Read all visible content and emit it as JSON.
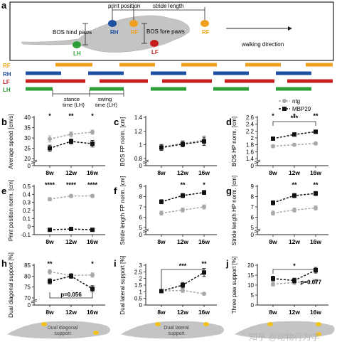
{
  "colors": {
    "ntg": "#a8a8a8",
    "mbp29": "#111111",
    "rf": "#f0a01e",
    "rh": "#1f4fa0",
    "lf": "#c81e1e",
    "lh": "#2e9e3a",
    "mouse": "#c4c4c4",
    "zh": "#b0b0b0",
    "footpad": "#f2c21a"
  },
  "panel_a": {
    "letter": "a",
    "labels": {
      "print_position": "print position",
      "stride_length": "stride length",
      "bos_hind": "BOS hind paws",
      "bos_fore": "BOS fore paws",
      "walking_direction": "walking direction",
      "stance": "stance\ntime (LH)",
      "swing": "swing\ntime (LH)"
    },
    "paws": [
      {
        "key": "rf",
        "label": "RF"
      },
      {
        "key": "rh",
        "label": "RH"
      },
      {
        "key": "lf",
        "label": "LF"
      },
      {
        "key": "lh",
        "label": "LH"
      }
    ]
  },
  "legend": {
    "ntg": "ntg",
    "mbp29": "MBP29"
  },
  "watermark": "知乎 @动物行为学",
  "support_labels": {
    "h": "Dual diagonal support",
    "i": "Dual lateral support"
  },
  "chart_data": [
    {
      "panel": "b",
      "type": "line",
      "ylabel": "Average speed [cm/s]",
      "categories": [
        "8w",
        "12w",
        "16w"
      ],
      "ylim": [
        0,
        40
      ],
      "yticks": [
        0,
        20,
        25,
        30,
        35,
        40
      ],
      "axis_break": true,
      "series": [
        {
          "name": "ntg",
          "values": [
            29.5,
            31.8,
            32.8
          ],
          "err": [
            1.5,
            1.2,
            1.0
          ]
        },
        {
          "name": "MBP29",
          "values": [
            25.0,
            28.3,
            27.2
          ],
          "err": [
            1.5,
            1.2,
            1.6
          ]
        }
      ],
      "sig": [
        "*",
        "**",
        "*"
      ]
    },
    {
      "panel": "c",
      "type": "line",
      "ylabel": "BOS FP norm. [cm]",
      "categories": [
        "8w",
        "12w",
        "16w"
      ],
      "ylim": [
        0,
        1.4
      ],
      "yticks": [
        0,
        0.8,
        1.0,
        1.2,
        1.4
      ],
      "axis_break": true,
      "series": [
        {
          "name": "ntg",
          "values": [
            0.97,
            1.02,
            1.07
          ],
          "err": [
            0.04,
            0.04,
            0.06
          ]
        },
        {
          "name": "MBP29",
          "values": [
            0.96,
            1.01,
            1.05
          ],
          "err": [
            0.04,
            0.04,
            0.06
          ]
        }
      ],
      "sig": [
        "",
        "",
        ""
      ]
    },
    {
      "panel": "d",
      "type": "line",
      "ylabel": "BOS HP norm. [cm]",
      "categories": [
        "8w",
        "12w",
        "16w"
      ],
      "ylim": [
        0,
        2.6
      ],
      "yticks": [
        0,
        1.4,
        1.6,
        1.8,
        2.0,
        2.2,
        2.4,
        2.6
      ],
      "axis_break": true,
      "series": [
        {
          "name": "ntg",
          "values": [
            1.76,
            1.8,
            1.84
          ],
          "err": [
            0.04,
            0.04,
            0.04
          ]
        },
        {
          "name": "MBP29",
          "values": [
            1.98,
            2.1,
            2.18
          ],
          "err": [
            0.05,
            0.05,
            0.05
          ]
        }
      ],
      "sig": [
        "*",
        "*",
        "**"
      ],
      "bracket": {
        "from": 0,
        "to": 2,
        "label": "***"
      }
    },
    {
      "panel": "e",
      "type": "line",
      "ylabel": "Print position norm. [cm]",
      "categories": [
        "8w",
        "12w",
        "16w"
      ],
      "ylim": [
        -0.1,
        0.5
      ],
      "yticks": [
        -0.1,
        0.0,
        0.1,
        0.2,
        0.3,
        0.4,
        0.5
      ],
      "axis_break": false,
      "series": [
        {
          "name": "ntg",
          "values": [
            0.34,
            0.38,
            0.38
          ],
          "err": [
            0.02,
            0.02,
            0.02
          ]
        },
        {
          "name": "MBP29",
          "values": [
            -0.04,
            -0.03,
            -0.04
          ],
          "err": [
            0.01,
            0.01,
            0.01
          ]
        }
      ],
      "sig": [
        "****",
        "****",
        "****"
      ]
    },
    {
      "panel": "f",
      "type": "line",
      "ylabel": "Stride length FP norm. [cm]",
      "categories": [
        "8w",
        "12w",
        "16w"
      ],
      "ylim": [
        0,
        9
      ],
      "yticks": [
        0,
        5,
        6,
        7,
        8,
        9
      ],
      "axis_break": true,
      "series": [
        {
          "name": "ntg",
          "values": [
            6.4,
            6.7,
            7.0
          ],
          "err": [
            0.2,
            0.2,
            0.2
          ]
        },
        {
          "name": "MBP29",
          "values": [
            7.5,
            8.1,
            8.4
          ],
          "err": [
            0.2,
            0.2,
            0.2
          ]
        }
      ],
      "sig": [
        "",
        "**",
        "*"
      ]
    },
    {
      "panel": "g",
      "type": "line",
      "ylabel": "Stride length HP norm. [cm]",
      "categories": [
        "8w",
        "12w",
        "16w"
      ],
      "ylim": [
        0,
        9
      ],
      "yticks": [
        0,
        5,
        6,
        7,
        8,
        9
      ],
      "axis_break": true,
      "series": [
        {
          "name": "ntg",
          "values": [
            6.4,
            6.7,
            6.9
          ],
          "err": [
            0.2,
            0.2,
            0.2
          ]
        },
        {
          "name": "MBP29",
          "values": [
            7.4,
            8.1,
            8.3
          ],
          "err": [
            0.2,
            0.2,
            0.2
          ]
        }
      ],
      "sig": [
        "",
        "**",
        "**"
      ]
    },
    {
      "panel": "h",
      "type": "line",
      "ylabel": "Dual diagonal support [%]",
      "categories": [
        "8w",
        "12w",
        "16w"
      ],
      "ylim": [
        0,
        85
      ],
      "yticks": [
        0,
        70,
        75,
        80,
        85
      ],
      "axis_break": true,
      "series": [
        {
          "name": "ntg",
          "values": [
            82.0,
            80.3,
            80.5
          ],
          "err": [
            1.0,
            1.0,
            1.0
          ]
        },
        {
          "name": "MBP29",
          "values": [
            77.6,
            80.0,
            74.2
          ],
          "err": [
            1.2,
            1.0,
            1.4
          ]
        }
      ],
      "sig": [
        "**",
        "",
        "*"
      ],
      "bracket": {
        "from": 0,
        "to": 2,
        "label": "p=0.056",
        "below": true
      }
    },
    {
      "panel": "i",
      "type": "line",
      "ylabel": "Dual lateral support [%]",
      "categories": [
        "8w",
        "12w",
        "16w"
      ],
      "ylim": [
        0,
        3.0
      ],
      "yticks": [
        0,
        0.5,
        1.0,
        1.5,
        2.0,
        2.5,
        3.0
      ],
      "axis_break": false,
      "series": [
        {
          "name": "ntg",
          "values": [
            1.05,
            1.1,
            0.85
          ],
          "err": [
            0.1,
            0.15,
            0.1
          ]
        },
        {
          "name": "MBP29",
          "values": [
            1.05,
            1.5,
            2.45
          ],
          "err": [
            0.1,
            0.2,
            0.3
          ]
        }
      ],
      "sig": [
        "",
        "",
        "**"
      ],
      "bracket": {
        "from": 0,
        "to": 2,
        "label": "***"
      }
    },
    {
      "panel": "j",
      "type": "line",
      "ylabel": "Three paw support [%]",
      "categories": [
        "8w",
        "12w",
        "16w"
      ],
      "ylim": [
        0,
        20
      ],
      "yticks": [
        0,
        5,
        10,
        15,
        20
      ],
      "axis_break": false,
      "series": [
        {
          "name": "ntg",
          "values": [
            10.5,
            11.3,
            12.0
          ],
          "err": [
            1.0,
            1.0,
            1.0
          ]
        },
        {
          "name": "MBP29",
          "values": [
            13.3,
            12.3,
            17.5
          ],
          "err": [
            1.2,
            1.2,
            1.4
          ]
        }
      ],
      "sig": [
        "",
        "",
        ""
      ],
      "bracket": {
        "from": 0,
        "to": 2,
        "label": "*"
      },
      "pnote": "p=0.077"
    }
  ]
}
